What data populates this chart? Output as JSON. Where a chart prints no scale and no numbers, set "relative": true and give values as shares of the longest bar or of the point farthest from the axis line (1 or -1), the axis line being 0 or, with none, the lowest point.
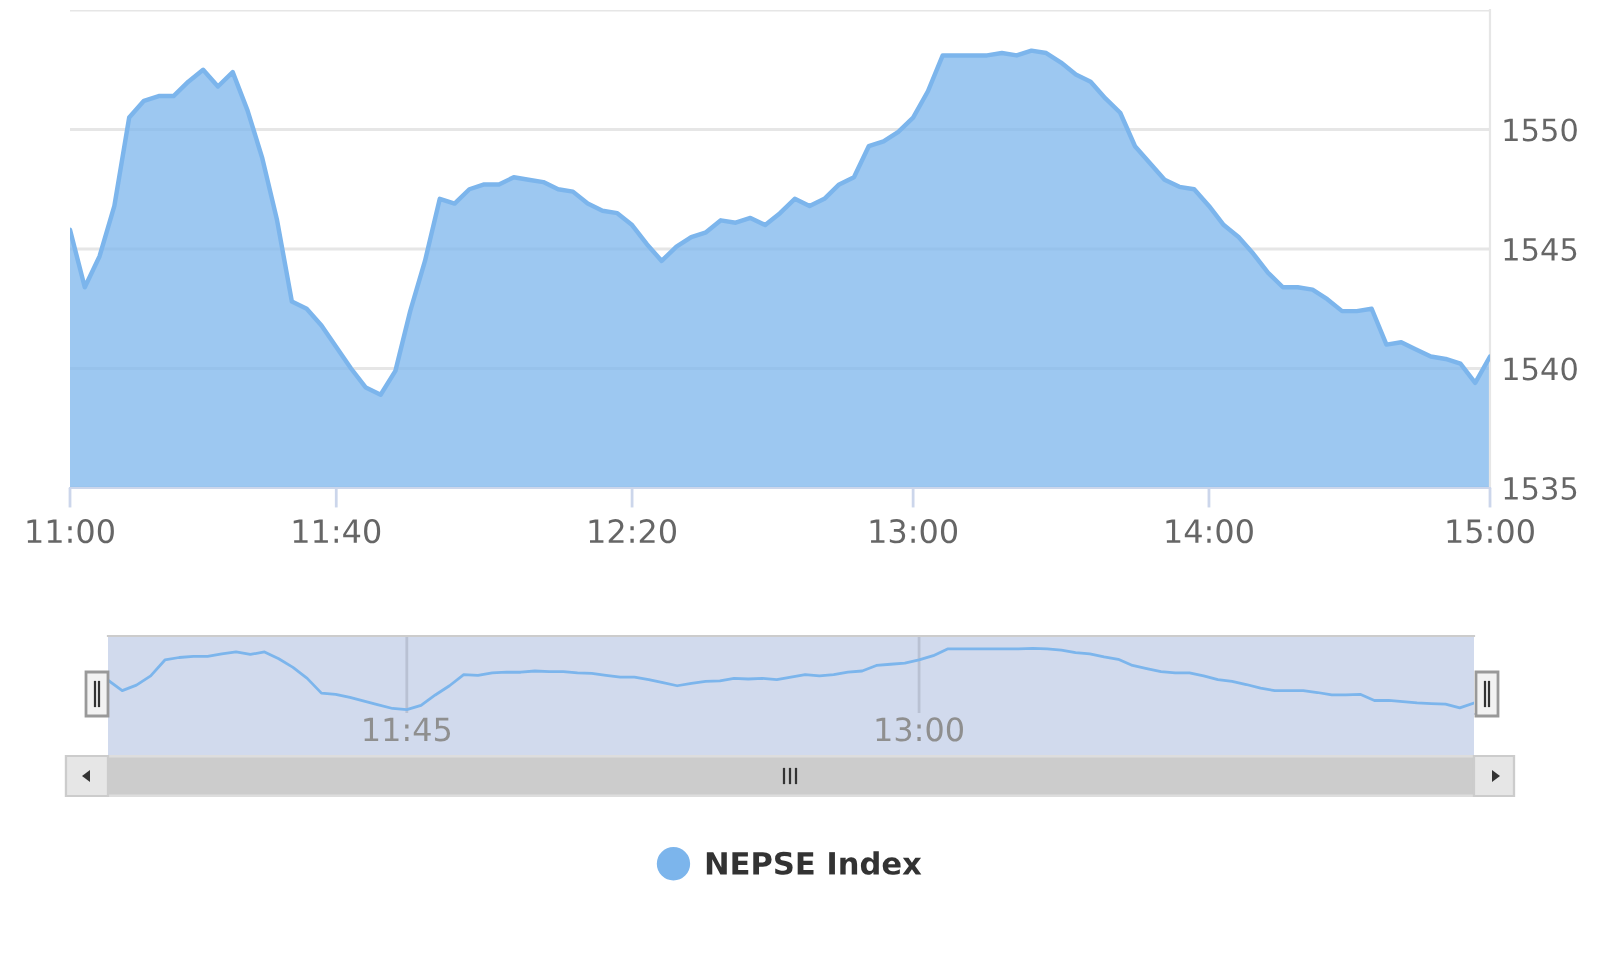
{
  "chart_data": [
    {
      "type": "area",
      "categories": [
        "11:00",
        null,
        null,
        null,
        null,
        null,
        null,
        null,
        null,
        null,
        null,
        null,
        null,
        null,
        null,
        null,
        null,
        null,
        "11:40",
        null,
        null,
        null,
        null,
        null,
        null,
        null,
        null,
        null,
        null,
        null,
        null,
        null,
        null,
        null,
        null,
        null,
        null,
        null,
        "12:20",
        null,
        null,
        null,
        null,
        null,
        null,
        null,
        null,
        null,
        null,
        null,
        null,
        null,
        null,
        null,
        null,
        null,
        null,
        "13:00",
        null,
        null,
        null,
        null,
        null,
        null,
        null,
        null,
        null,
        null,
        null,
        null,
        null,
        null,
        null,
        null,
        null,
        null,
        null,
        "14:00",
        null,
        null,
        null,
        null,
        null,
        null,
        null,
        null,
        null,
        null,
        null,
        null,
        null,
        null,
        null,
        null,
        null,
        null,
        "15:00"
      ],
      "series": [
        {
          "name": "NEPSE Index",
          "color": "#7cb5ec",
          "values": [
            1545.8,
            1543.4,
            1544.7,
            1546.8,
            1550.5,
            1551.2,
            1551.4,
            1551.4,
            1552.0,
            1552.5,
            1551.8,
            1552.4,
            1550.8,
            1548.8,
            1546.2,
            1542.8,
            1542.5,
            1541.8,
            1540.9,
            1540.0,
            1539.2,
            1538.9,
            1539.9,
            1542.4,
            1544.5,
            1547.1,
            1546.9,
            1547.5,
            1547.7,
            1547.7,
            1548.0,
            1547.9,
            1547.8,
            1547.5,
            1547.4,
            1546.9,
            1546.6,
            1546.5,
            1546.0,
            1545.2,
            1544.5,
            1545.1,
            1545.5,
            1545.7,
            1546.2,
            1546.1,
            1546.3,
            1546.0,
            1546.5,
            1547.1,
            1546.8,
            1547.1,
            1547.7,
            1548.0,
            1549.3,
            1549.5,
            1549.9,
            1550.5,
            1551.6,
            1553.1,
            1553.1,
            1553.1,
            1553.1,
            1553.2,
            1553.1,
            1553.3,
            1553.2,
            1552.8,
            1552.3,
            1552.0,
            1551.3,
            1550.7,
            1549.3,
            1548.6,
            1547.9,
            1547.6,
            1547.5,
            1546.8,
            1546.0,
            1545.5,
            1544.8,
            1544.0,
            1543.4,
            1543.4,
            1543.3,
            1542.9,
            1542.4,
            1542.4,
            1542.5,
            1541.0,
            1541.1,
            1540.8,
            1540.5,
            1540.4,
            1540.2,
            1539.4,
            1540.5
          ]
        }
      ],
      "ylim": [
        1535,
        1555
      ],
      "yticks": [
        1535,
        1540,
        1545,
        1550,
        {
          "value": 1555,
          "label": null
        }
      ],
      "grid": "y",
      "legend": "bottom"
    },
    {
      "type": "line",
      "relative": true,
      "categories": [
        null,
        null,
        null,
        null,
        null,
        null,
        null,
        null,
        null,
        null,
        null,
        null,
        null,
        null,
        null,
        null,
        null,
        null,
        null,
        null,
        null,
        "11:45",
        null,
        null,
        null,
        null,
        null,
        null,
        null,
        null,
        null,
        null,
        null,
        null,
        null,
        null,
        null,
        null,
        null,
        null,
        null,
        null,
        null,
        null,
        null,
        null,
        null,
        null,
        null,
        null,
        null,
        null,
        null,
        null,
        null,
        null,
        null,
        "13:00",
        null,
        null,
        null,
        null,
        null,
        null,
        null,
        null,
        null,
        null,
        null,
        null,
        null,
        null,
        null,
        null,
        null,
        null,
        null,
        null,
        null,
        null,
        null,
        null,
        null,
        null,
        null,
        null,
        null,
        null,
        null,
        null,
        null,
        null,
        null,
        null,
        null,
        null,
        null
      ],
      "color": "#7cb5ec",
      "values": [
        0.48,
        0.31,
        0.4,
        0.55,
        0.81,
        0.85,
        0.87,
        0.87,
        0.91,
        0.94,
        0.9,
        0.94,
        0.83,
        0.69,
        0.51,
        0.27,
        0.25,
        0.2,
        0.14,
        0.08,
        0.02,
        0,
        0.07,
        0.24,
        0.39,
        0.57,
        0.56,
        0.6,
        0.61,
        0.61,
        0.63,
        0.62,
        0.62,
        0.6,
        0.59,
        0.56,
        0.53,
        0.53,
        0.49,
        0.44,
        0.39,
        0.43,
        0.46,
        0.47,
        0.51,
        0.5,
        0.51,
        0.49,
        0.53,
        0.57,
        0.55,
        0.57,
        0.61,
        0.63,
        0.72,
        0.74,
        0.76,
        0.81,
        0.88,
        0.99,
        0.99,
        0.99,
        0.99,
        0.99,
        0.99,
        1,
        0.99,
        0.97,
        0.93,
        0.91,
        0.86,
        0.82,
        0.72,
        0.67,
        0.62,
        0.6,
        0.6,
        0.55,
        0.49,
        0.46,
        0.41,
        0.35,
        0.31,
        0.31,
        0.31,
        0.28,
        0.24,
        0.24,
        0.25,
        0.15,
        0.15,
        0.13,
        0.11,
        0.1,
        0.09,
        0.03,
        0.11
      ],
      "tick_labels": "x",
      "grid": "x"
    }
  ]
}
